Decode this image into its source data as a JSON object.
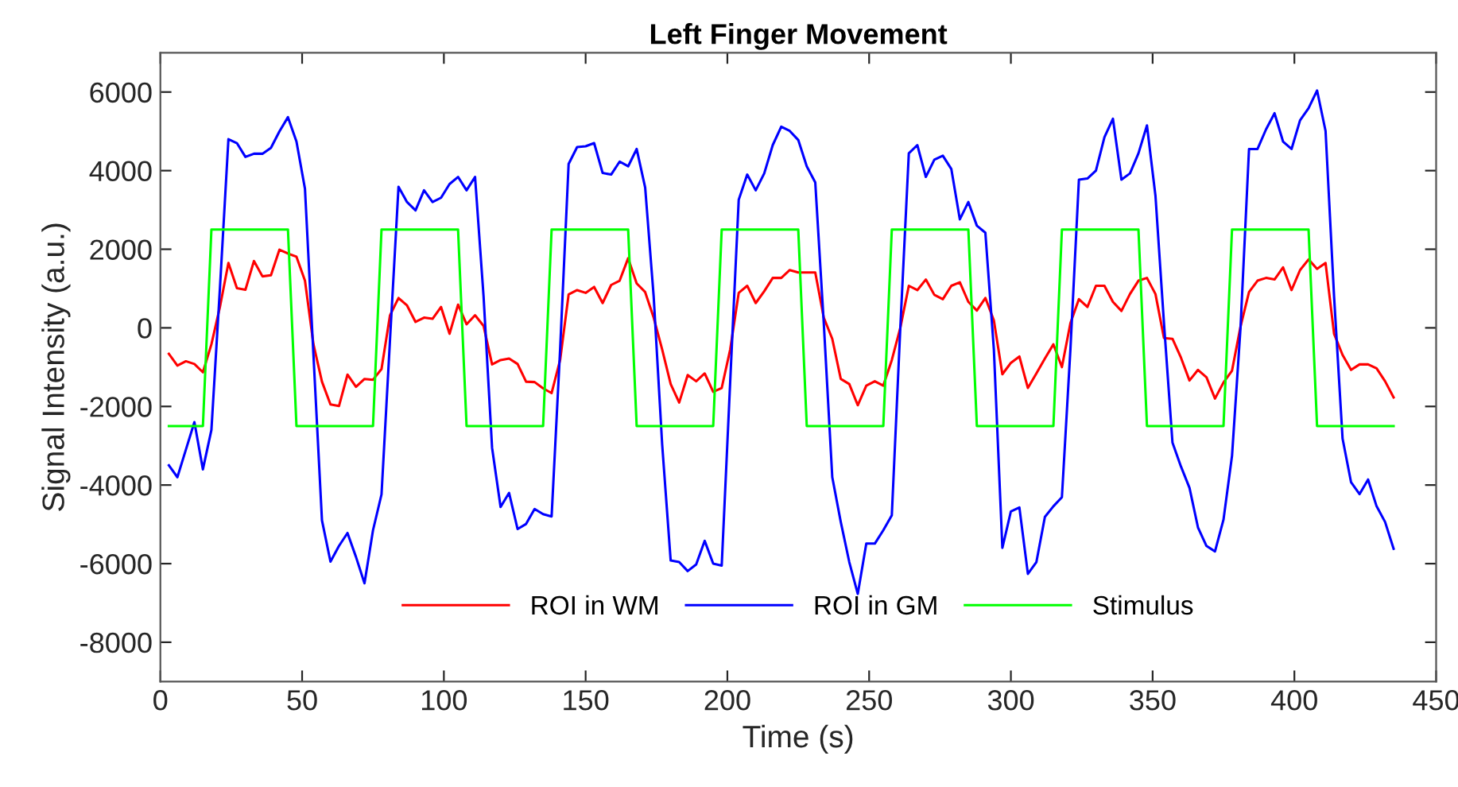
{
  "chart_data": {
    "type": "line",
    "title": "Left Finger Movement",
    "xlabel": "Time (s)",
    "ylabel": "Signal Intensity (a.u.)",
    "x": [
      3,
      6,
      9,
      12,
      15,
      18,
      21,
      24,
      27,
      30,
      33,
      36,
      39,
      42,
      45,
      48,
      51,
      54,
      57,
      60,
      63,
      66,
      69,
      72,
      75,
      78,
      81,
      84,
      87,
      90,
      93,
      96,
      99,
      102,
      105,
      108,
      111,
      114,
      117,
      120,
      123,
      126,
      129,
      132,
      135,
      138,
      141,
      144,
      147,
      150,
      153,
      156,
      159,
      162,
      165,
      168,
      171,
      174,
      177,
      180,
      183,
      186,
      189,
      192,
      195,
      198,
      201,
      204,
      207,
      210,
      213,
      216,
      219,
      222,
      225,
      228,
      231,
      234,
      237,
      240,
      243,
      246,
      249,
      252,
      255,
      258,
      261,
      264,
      267,
      270,
      273,
      276,
      279,
      282,
      285,
      288,
      291,
      294,
      297,
      300,
      303,
      306,
      309,
      312,
      315,
      318,
      321,
      324,
      327,
      330,
      333,
      336,
      339,
      342,
      345,
      348,
      351,
      354,
      357,
      360,
      363,
      366,
      369,
      372,
      375,
      378,
      381,
      384,
      387,
      390,
      393,
      396,
      399,
      402,
      405,
      408,
      411,
      414,
      417,
      420,
      423,
      426,
      429,
      432,
      435
    ],
    "series": [
      {
        "name": "ROI in WM",
        "color": "#ff0000",
        "values": [
          -660,
          -960,
          -850,
          -920,
          -1130,
          -420,
          530,
          1650,
          1010,
          970,
          1700,
          1310,
          1340,
          1990,
          1890,
          1810,
          1200,
          -420,
          -1370,
          -1950,
          -1990,
          -1190,
          -1500,
          -1300,
          -1320,
          -1050,
          320,
          760,
          570,
          150,
          260,
          230,
          530,
          -150,
          590,
          90,
          320,
          50,
          -930,
          -820,
          -780,
          -920,
          -1370,
          -1380,
          -1540,
          -1660,
          -820,
          850,
          960,
          890,
          1040,
          630,
          1090,
          1200,
          1770,
          1130,
          910,
          260,
          -550,
          -1430,
          -1900,
          -1200,
          -1360,
          -1160,
          -1630,
          -1530,
          -550,
          890,
          1070,
          630,
          930,
          1270,
          1270,
          1470,
          1410,
          1410,
          1410,
          260,
          -280,
          -1300,
          -1430,
          -1970,
          -1470,
          -1360,
          -1470,
          -820,
          0,
          1070,
          960,
          1230,
          840,
          730,
          1070,
          1160,
          660,
          440,
          760,
          190,
          -1180,
          -890,
          -730,
          -1530,
          -1160,
          -780,
          -420,
          -1000,
          120,
          730,
          530,
          1070,
          1070,
          660,
          430,
          860,
          1200,
          1270,
          860,
          -260,
          -280,
          -760,
          -1340,
          -1070,
          -1260,
          -1800,
          -1390,
          -1090,
          30,
          910,
          1200,
          1270,
          1230,
          1540,
          960,
          1470,
          1740,
          1500,
          1650,
          -150,
          -690,
          -1070,
          -930,
          -930,
          -1030,
          -1360,
          -1770
        ]
      },
      {
        "name": "ROI in GM",
        "color": "#0000ff",
        "values": [
          -3500,
          -3800,
          -3100,
          -2400,
          -3600,
          -2600,
          1000,
          4800,
          4700,
          4350,
          4430,
          4430,
          4580,
          5000,
          5360,
          4740,
          3540,
          -700,
          -4900,
          -5950,
          -5550,
          -5220,
          -5830,
          -6500,
          -5150,
          -4240,
          -300,
          3590,
          3200,
          2990,
          3500,
          3200,
          3310,
          3660,
          3840,
          3500,
          3840,
          800,
          -3050,
          -4560,
          -4200,
          -5120,
          -4990,
          -4610,
          -4740,
          -4800,
          -550,
          4170,
          4600,
          4620,
          4700,
          3940,
          3900,
          4230,
          4110,
          4550,
          3570,
          800,
          -2970,
          -5920,
          -5960,
          -6190,
          -6020,
          -5420,
          -6000,
          -6050,
          -1360,
          3260,
          3900,
          3500,
          3930,
          4650,
          5120,
          5010,
          4780,
          4110,
          3700,
          120,
          -3800,
          -4940,
          -5960,
          -6770,
          -5490,
          -5490,
          -5150,
          -4770,
          0,
          4440,
          4650,
          3840,
          4280,
          4380,
          4040,
          2760,
          3200,
          2600,
          2420,
          -550,
          -5600,
          -4670,
          -4570,
          -6260,
          -5960,
          -4810,
          -4540,
          -4310,
          -550,
          3770,
          3800,
          4000,
          4850,
          5320,
          3770,
          3930,
          4440,
          5150,
          3360,
          120,
          -2920,
          -3530,
          -4070,
          -5080,
          -5550,
          -5690,
          -4880,
          -3260,
          0,
          4550,
          4550,
          5050,
          5460,
          4740,
          4550,
          5280,
          5590,
          6040,
          5010,
          800,
          -2820,
          -3930,
          -4230,
          -3860,
          -4540,
          -4940,
          -5620
        ]
      },
      {
        "name": "Stimulus",
        "color": "#00ff00",
        "values": [
          -2500,
          -2500,
          -2500,
          -2500,
          -2500,
          2500,
          2500,
          2500,
          2500,
          2500,
          2500,
          2500,
          2500,
          2500,
          2500,
          -2500,
          -2500,
          -2500,
          -2500,
          -2500,
          -2500,
          -2500,
          -2500,
          -2500,
          -2500,
          2500,
          2500,
          2500,
          2500,
          2500,
          2500,
          2500,
          2500,
          2500,
          2500,
          -2500,
          -2500,
          -2500,
          -2500,
          -2500,
          -2500,
          -2500,
          -2500,
          -2500,
          -2500,
          2500,
          2500,
          2500,
          2500,
          2500,
          2500,
          2500,
          2500,
          2500,
          2500,
          -2500,
          -2500,
          -2500,
          -2500,
          -2500,
          -2500,
          -2500,
          -2500,
          -2500,
          -2500,
          2500,
          2500,
          2500,
          2500,
          2500,
          2500,
          2500,
          2500,
          2500,
          2500,
          -2500,
          -2500,
          -2500,
          -2500,
          -2500,
          -2500,
          -2500,
          -2500,
          -2500,
          -2500,
          2500,
          2500,
          2500,
          2500,
          2500,
          2500,
          2500,
          2500,
          2500,
          2500,
          -2500,
          -2500,
          -2500,
          -2500,
          -2500,
          -2500,
          -2500,
          -2500,
          -2500,
          -2500,
          2500,
          2500,
          2500,
          2500,
          2500,
          2500,
          2500,
          2500,
          2500,
          2500,
          -2500,
          -2500,
          -2500,
          -2500,
          -2500,
          -2500,
          -2500,
          -2500,
          -2500,
          -2500,
          2500,
          2500,
          2500,
          2500,
          2500,
          2500,
          2500,
          2500,
          2500,
          2500,
          -2500,
          -2500,
          -2500,
          -2500,
          -2500,
          -2500,
          -2500,
          -2500,
          -2500,
          -2500
        ]
      }
    ],
    "xlim": [
      0,
      450
    ],
    "xticks": [
      0,
      50,
      100,
      150,
      200,
      250,
      300,
      350,
      400,
      450
    ],
    "ylim": [
      -9000,
      7000
    ],
    "yticks": [
      -8000,
      -6000,
      -4000,
      -2000,
      0,
      2000,
      4000,
      6000
    ],
    "legend": "bottom",
    "grid": false,
    "marker": "none",
    "line_style": "solid"
  }
}
